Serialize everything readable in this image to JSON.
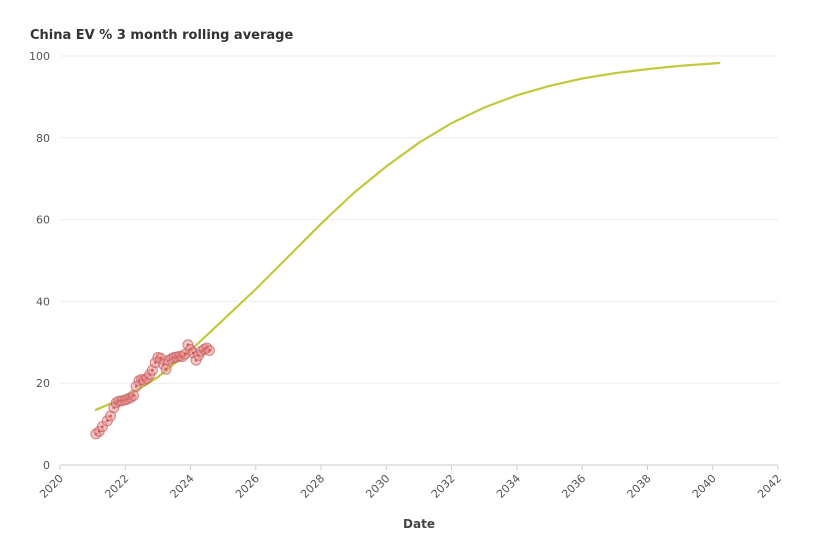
{
  "chart_data": {
    "type": "scatter",
    "title": "China EV % 3 month rolling average",
    "xlabel": "Date",
    "ylabel": "",
    "xlim": [
      2020,
      2042
    ],
    "ylim": [
      0,
      100
    ],
    "xticks": [
      "2020",
      "2022",
      "2024",
      "2026",
      "2028",
      "2030",
      "2032",
      "2034",
      "2036",
      "2038",
      "2040",
      "2042"
    ],
    "yticks": [
      "0",
      "20",
      "40",
      "60",
      "80",
      "100"
    ],
    "grid": true,
    "colors": {
      "points_fill": "#e58a8a",
      "points_stroke": "#c06060",
      "center": "#d94848",
      "trend": "#c2c93a"
    },
    "series": [
      {
        "type": "scatter",
        "points": [
          [
            2021.1,
            7.6
          ],
          [
            2021.2,
            8.2
          ],
          [
            2021.3,
            9.4
          ],
          [
            2021.45,
            10.8
          ],
          [
            2021.55,
            12.0
          ],
          [
            2021.65,
            14.0
          ],
          [
            2021.72,
            15.2
          ],
          [
            2021.8,
            15.6
          ],
          [
            2021.9,
            15.7
          ],
          [
            2022.0,
            15.9
          ],
          [
            2022.08,
            16.2
          ],
          [
            2022.17,
            16.5
          ],
          [
            2022.25,
            17.0
          ],
          [
            2022.33,
            19.2
          ],
          [
            2022.42,
            20.6
          ],
          [
            2022.5,
            20.9
          ],
          [
            2022.58,
            20.7
          ],
          [
            2022.67,
            21.2
          ],
          [
            2022.75,
            22.1
          ],
          [
            2022.83,
            23.2
          ],
          [
            2022.92,
            25.0
          ],
          [
            2023.0,
            26.3
          ],
          [
            2023.08,
            26.1
          ],
          [
            2023.17,
            24.6
          ],
          [
            2023.25,
            23.4
          ],
          [
            2023.33,
            25.6
          ],
          [
            2023.42,
            26.0
          ],
          [
            2023.5,
            26.3
          ],
          [
            2023.58,
            26.4
          ],
          [
            2023.67,
            26.6
          ],
          [
            2023.75,
            26.5
          ],
          [
            2023.83,
            27.1
          ],
          [
            2023.92,
            29.4
          ],
          [
            2024.0,
            28.2
          ],
          [
            2024.08,
            27.4
          ],
          [
            2024.17,
            25.6
          ],
          [
            2024.25,
            26.8
          ],
          [
            2024.33,
            27.8
          ],
          [
            2024.42,
            28.3
          ],
          [
            2024.5,
            28.6
          ],
          [
            2024.58,
            28.0
          ]
        ]
      },
      {
        "type": "line",
        "points": [
          [
            2021.1,
            13.5
          ],
          [
            2022,
            16.5
          ],
          [
            2023,
            21.5
          ],
          [
            2024,
            28.0
          ],
          [
            2025,
            35.5
          ],
          [
            2026,
            43.0
          ],
          [
            2027,
            51.0
          ],
          [
            2028,
            59.0
          ],
          [
            2029,
            66.5
          ],
          [
            2030,
            73.0
          ],
          [
            2031,
            78.8
          ],
          [
            2032,
            83.6
          ],
          [
            2033,
            87.4
          ],
          [
            2034,
            90.4
          ],
          [
            2035,
            92.7
          ],
          [
            2036,
            94.5
          ],
          [
            2037,
            95.8
          ],
          [
            2038,
            96.8
          ],
          [
            2039,
            97.6
          ],
          [
            2040.2,
            98.3
          ]
        ]
      }
    ]
  }
}
